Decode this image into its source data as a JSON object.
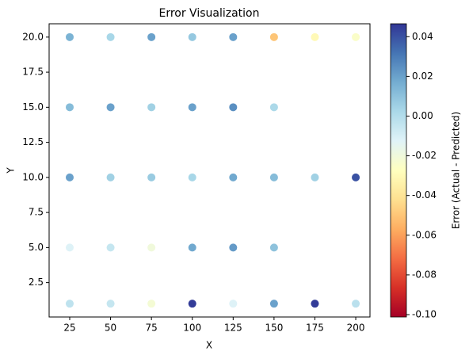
{
  "chart_data": {
    "type": "scatter",
    "title": "Error Visualization",
    "x_label": "X",
    "y_label": "Y",
    "x": [
      25,
      50,
      75,
      100,
      125,
      150,
      175,
      200,
      25,
      50,
      75,
      100,
      125,
      150,
      25,
      50,
      75,
      100,
      125,
      150,
      175,
      200,
      25,
      50,
      75,
      100,
      125,
      150,
      25,
      50,
      75,
      100,
      125,
      150,
      175,
      200
    ],
    "y": [
      20,
      20,
      20,
      20,
      20,
      20,
      20,
      20,
      15,
      15,
      15,
      15,
      15,
      15,
      10,
      10,
      10,
      10,
      10,
      10,
      10,
      10,
      5,
      5,
      5,
      5,
      5,
      5,
      1,
      1,
      1,
      1,
      1,
      1,
      1,
      1
    ],
    "c": [
      0.015,
      0.003,
      0.02,
      0.008,
      0.02,
      -0.05,
      -0.03,
      -0.025,
      0.012,
      0.02,
      0.005,
      0.02,
      0.025,
      0.002,
      0.02,
      0.005,
      0.007,
      0.003,
      0.018,
      0.012,
      0.005,
      0.04,
      -0.012,
      -0.005,
      -0.02,
      0.018,
      0.022,
      0.01,
      -0.003,
      -0.005,
      -0.022,
      0.045,
      -0.012,
      0.02,
      0.045,
      -0.002
    ],
    "colormap": "RdYlBu",
    "xlim": [
      12.4,
      208.7
    ],
    "xticks": [
      25,
      50,
      75,
      100,
      125,
      150,
      175,
      200
    ],
    "ylim": [
      0.05,
      20.95
    ],
    "yticks": [
      2.5,
      {
        "value": 5,
        "label": "5.0"
      },
      7.5,
      {
        "value": 10,
        "label": "10.0"
      },
      12.5,
      {
        "value": 15,
        "label": "15.0"
      },
      17.5,
      {
        "value": 20,
        "label": "20.0"
      }
    ],
    "colorbar_label": "Error (Actual - Predicted)",
    "clim": [
      -0.1012,
      0.0465
    ],
    "cticks": [
      {
        "value": -0.1,
        "label": "-0.10"
      },
      {
        "value": -0.08,
        "label": "-0.08"
      },
      {
        "value": -0.06,
        "label": "-0.06"
      },
      {
        "value": -0.04,
        "label": "-0.04"
      },
      {
        "value": -0.02,
        "label": "-0.02"
      },
      {
        "value": 0,
        "label": "0.00"
      },
      {
        "value": 0.02,
        "label": "0.02"
      },
      {
        "value": 0.04,
        "label": "0.04"
      }
    ]
  }
}
